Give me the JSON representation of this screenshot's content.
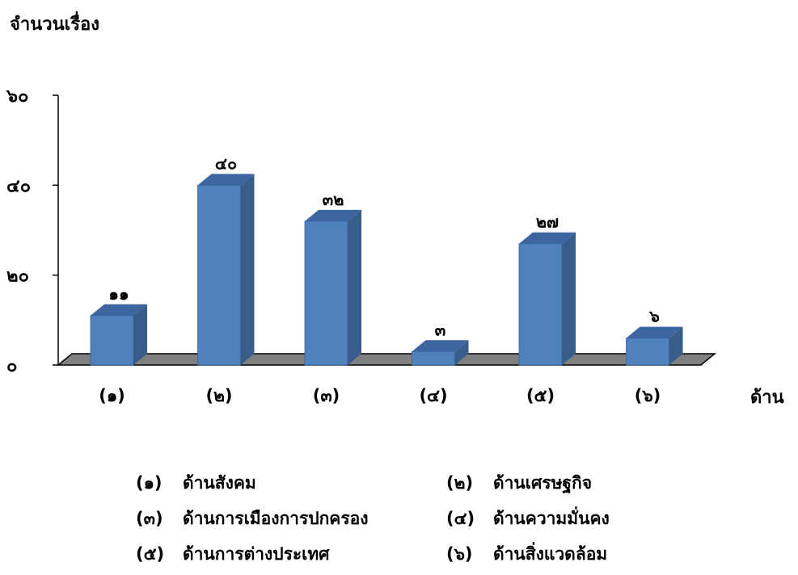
{
  "chart_data": {
    "type": "bar",
    "ylabel": "จำนวนเรื่อง",
    "xlabel": "ด้าน",
    "categories": [
      "(๑)",
      "(๒)",
      "(๓)",
      "(๔)",
      "(๕)",
      "(๖)"
    ],
    "values": [
      11,
      40,
      32,
      3,
      27,
      6
    ],
    "value_labels": [
      "๑๑",
      "๔๐",
      "๓๒",
      "๓",
      "๒๗",
      "๖"
    ],
    "ylim": [
      0,
      60
    ],
    "yticks": [
      0,
      20,
      40,
      60
    ],
    "ytick_labels": [
      "๐",
      "๒๐",
      "๔๐",
      "๖๐"
    ],
    "bar_color": "#4F81BD",
    "bar_side_color": "#385D8A",
    "bar_top_color": "#3D65A0",
    "floor_color": "#808080"
  },
  "legend": [
    {
      "code": "(๑)",
      "label": "ด้านสังคม"
    },
    {
      "code": "(๒)",
      "label": "ด้านเศรษฐกิจ"
    },
    {
      "code": "(๓)",
      "label": "ด้านการเมืองการปกครอง"
    },
    {
      "code": "(๔)",
      "label": "ด้านความมั่นคง"
    },
    {
      "code": "(๕)",
      "label": "ด้านการต่างประเทศ"
    },
    {
      "code": "(๖)",
      "label": "ด้านสิ่งแวดล้อม"
    }
  ]
}
